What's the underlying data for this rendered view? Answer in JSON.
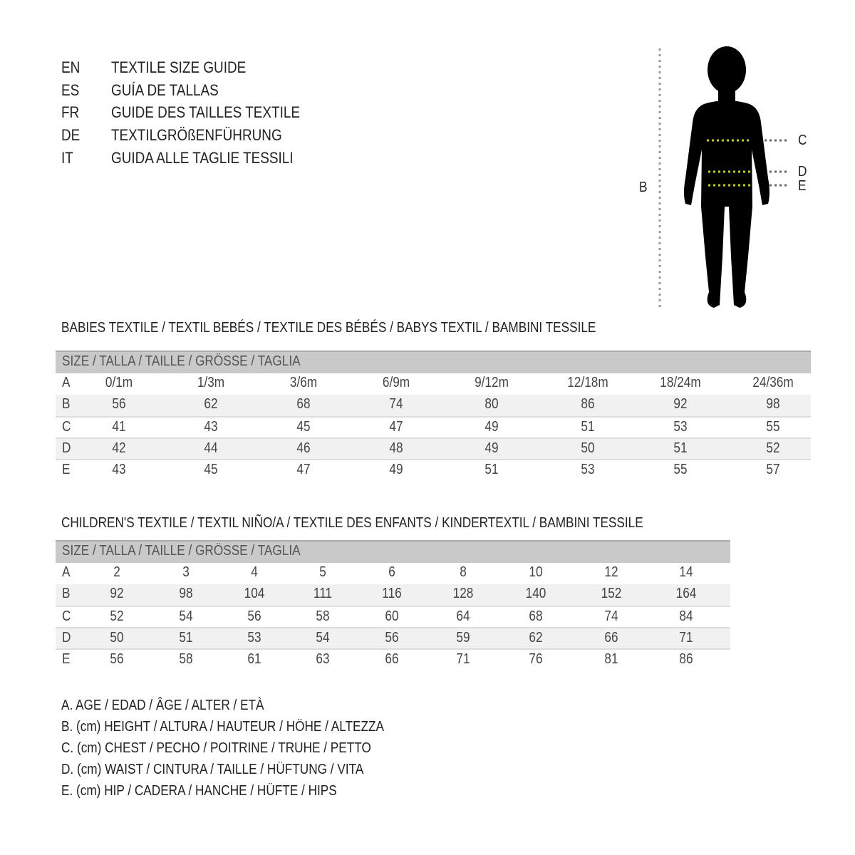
{
  "titles": [
    {
      "code": "EN",
      "text": "TEXTILE SIZE GUIDE"
    },
    {
      "code": "ES",
      "text": "GUÍA DE TALLAS"
    },
    {
      "code": "FR",
      "text": "GUIDE DES TAILLES TEXTILE"
    },
    {
      "code": "DE",
      "text": "TEXTILGRÖßENFÜHRUNG"
    },
    {
      "code": "IT",
      "text": "GUIDA ALLE TAGLIE TESSILI"
    }
  ],
  "figure": {
    "labels": {
      "b": "B",
      "c": "C",
      "d": "D",
      "e": "E"
    },
    "measure_line_color": "#c8d400"
  },
  "babies": {
    "title": "BABIES TEXTILE / TEXTIL BEBÉS / TEXTILE DES BÉBÉS / BABYS TEXTIL  / BAMBINI TESSILE",
    "header": "SIZE / TALLA / TAILLE / GRÖSSE / TAGLIA",
    "rows": [
      {
        "label": "A",
        "values": [
          "0/1m",
          "1/3m",
          "3/6m",
          "6/9m",
          "9/12m",
          "12/18m",
          "18/24m",
          "24/36m"
        ]
      },
      {
        "label": "B",
        "values": [
          "56",
          "62",
          "68",
          "74",
          "80",
          "86",
          "92",
          "98"
        ]
      },
      {
        "label": "C",
        "values": [
          "41",
          "43",
          "45",
          "47",
          "49",
          "51",
          "53",
          "55"
        ]
      },
      {
        "label": "D",
        "values": [
          "42",
          "44",
          "46",
          "48",
          "49",
          "50",
          "51",
          "52"
        ]
      },
      {
        "label": "E",
        "values": [
          "43",
          "45",
          "47",
          "49",
          "51",
          "53",
          "55",
          "57"
        ]
      }
    ]
  },
  "children": {
    "title": "CHILDREN'S TEXTILE / TEXTIL NIÑO/A / TEXTILE DES ENFANTS / KINDERTEXTIL / BAMBINI TESSILE",
    "header": "SIZE / TALLA / TAILLE / GRÖSSE / TAGLIA",
    "rows": [
      {
        "label": "A",
        "values": [
          "2",
          "3",
          "4",
          "5",
          "6",
          "8",
          "10",
          "12",
          "14"
        ]
      },
      {
        "label": "B",
        "values": [
          "92",
          "98",
          "104",
          "111",
          "116",
          "128",
          "140",
          "152",
          "164"
        ]
      },
      {
        "label": "C",
        "values": [
          "52",
          "54",
          "56",
          "58",
          "60",
          "64",
          "68",
          "74",
          "84"
        ]
      },
      {
        "label": "D",
        "values": [
          "50",
          "51",
          "53",
          "54",
          "56",
          "59",
          "62",
          "66",
          "71"
        ]
      },
      {
        "label": "E",
        "values": [
          "56",
          "58",
          "61",
          "63",
          "66",
          "71",
          "76",
          "81",
          "86"
        ]
      }
    ]
  },
  "legend": [
    "A. AGE / EDAD / ÂGE / ALTER / ETÀ",
    "B. (cm) HEIGHT / ALTURA / HAUTEUR / HÖHE / ALTEZZA",
    "C. (cm) CHEST / PECHO / POITRINE / TRUHE / PETTO",
    "D. (cm) WAIST / CINTURA / TAILLE / HÜFTUNG / VITA",
    "E. (cm) HIP / CADERA / HANCHE / HÜFTE / HIPS"
  ]
}
